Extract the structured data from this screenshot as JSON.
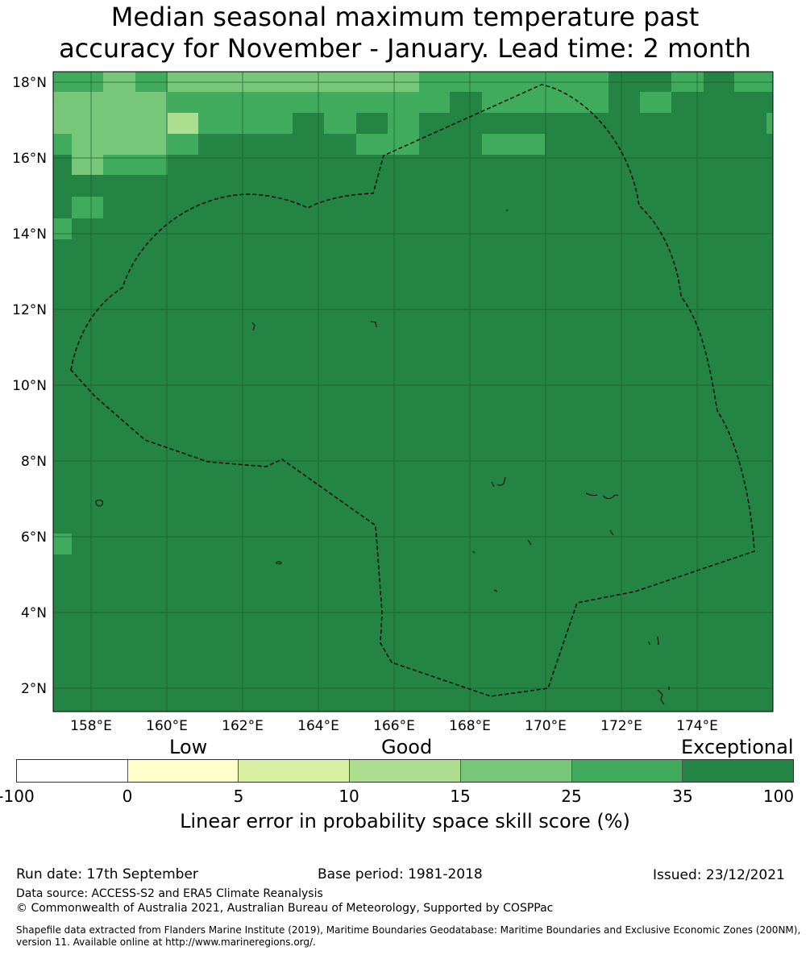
{
  "title_line1": "Median seasonal maximum temperature past",
  "title_line2": "accuracy for November - January. Lead time: 2 month",
  "map": {
    "lon_ticks": [
      "158°E",
      "160°E",
      "162°E",
      "164°E",
      "166°E",
      "168°E",
      "170°E",
      "172°E",
      "174°E"
    ],
    "lat_ticks": [
      "18°N",
      "16°N",
      "14°N",
      "12°N",
      "10°N",
      "8°N",
      "6°N",
      "4°N",
      "2°N"
    ],
    "grid": true,
    "legend_colors": {
      "neg": "#ffffff",
      "c0_5": "#ffffcc",
      "c5_10": "#d9f0a3",
      "c10_15": "#addd8e",
      "c15_25": "#78c679",
      "c25_35": "#41ab5d",
      "c35_100": "#238443"
    }
  },
  "colorbar": {
    "categories": [
      "Low",
      "Good",
      "Exceptional"
    ],
    "ticks": [
      "-100",
      "0",
      "5",
      "10",
      "15",
      "25",
      "35",
      "100"
    ],
    "label": "Linear error in probability space skill score (%)"
  },
  "footer": {
    "run_date": "Run date: 17th September",
    "base_period": "Base period: 1981-2018",
    "issued": "Issued: 23/12/2021",
    "data_source": "Data source: ACCESS-S2 and ERA5 Climate Reanalysis",
    "copyright": "© Commonwealth of Australia 2021, Australian Bureau of Meteorology, Supported by COSPPac",
    "shapefile": "Shapefile data extracted from Flanders Marine Institute (2019), Maritime Boundaries Geodatabase: Maritime Boundaries and Exclusive Economic Zones (200NM), version 11. Available online at http://www.marineregions.org/."
  }
}
